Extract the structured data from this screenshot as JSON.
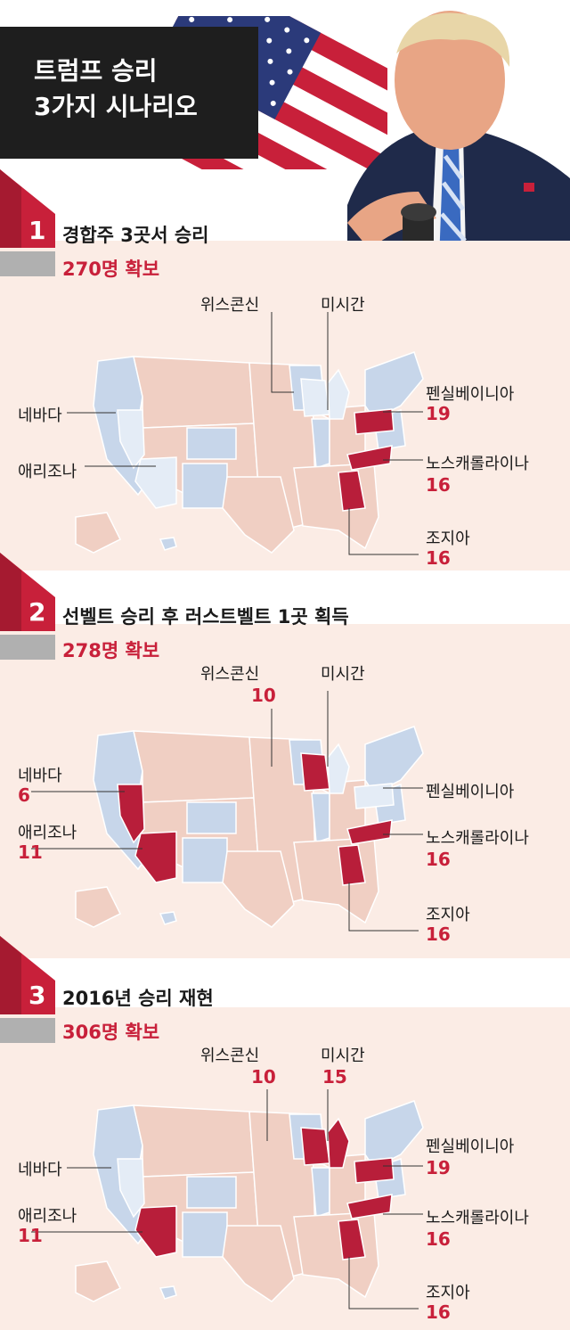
{
  "title": {
    "line1": "트럼프 승리",
    "line2": "3가지 시나리오"
  },
  "colors": {
    "win": "#b81e3a",
    "red_state": "#f0cfc3",
    "blue_state": "#c7d6ea",
    "swing_blue": "#e4ecf6",
    "accent": "#c8203a"
  },
  "icons": {
    "flag": "us-flag-icon",
    "photo": "trump-pointing-photo"
  },
  "scenarios": [
    {
      "number": "1",
      "title": "경합주 3곳서 승리",
      "subtitle": "270명 확보",
      "states": {
        "wisconsin": {
          "label": "위스콘신",
          "ev": "",
          "won": false
        },
        "michigan": {
          "label": "미시간",
          "ev": "",
          "won": false
        },
        "pennsylvania": {
          "label": "펜실베이니아",
          "ev": "19",
          "won": true
        },
        "nevada": {
          "label": "네바다",
          "ev": "",
          "won": false
        },
        "arizona": {
          "label": "애리조나",
          "ev": "",
          "won": false
        },
        "north_carolina": {
          "label": "노스캐롤라이나",
          "ev": "16",
          "won": true
        },
        "georgia": {
          "label": "조지아",
          "ev": "16",
          "won": true
        }
      }
    },
    {
      "number": "2",
      "title": "선벨트 승리 후 러스트벨트 1곳 획득",
      "subtitle": "278명 확보",
      "states": {
        "wisconsin": {
          "label": "위스콘신",
          "ev": "10",
          "won": true
        },
        "michigan": {
          "label": "미시간",
          "ev": "",
          "won": false
        },
        "pennsylvania": {
          "label": "펜실베이니아",
          "ev": "",
          "won": false
        },
        "nevada": {
          "label": "네바다",
          "ev": "6",
          "won": true
        },
        "arizona": {
          "label": "애리조나",
          "ev": "11",
          "won": true
        },
        "north_carolina": {
          "label": "노스캐롤라이나",
          "ev": "16",
          "won": true
        },
        "georgia": {
          "label": "조지아",
          "ev": "16",
          "won": true
        }
      }
    },
    {
      "number": "3",
      "title": "2016년 승리 재현",
      "subtitle": "306명 확보",
      "states": {
        "wisconsin": {
          "label": "위스콘신",
          "ev": "10",
          "won": true
        },
        "michigan": {
          "label": "미시간",
          "ev": "15",
          "won": true
        },
        "pennsylvania": {
          "label": "펜실베이니아",
          "ev": "19",
          "won": true
        },
        "nevada": {
          "label": "네바다",
          "ev": "",
          "won": false
        },
        "arizona": {
          "label": "애리조나",
          "ev": "11",
          "won": true
        },
        "north_carolina": {
          "label": "노스캐롤라이나",
          "ev": "16",
          "won": true
        },
        "georgia": {
          "label": "조지아",
          "ev": "16",
          "won": true
        }
      }
    }
  ]
}
